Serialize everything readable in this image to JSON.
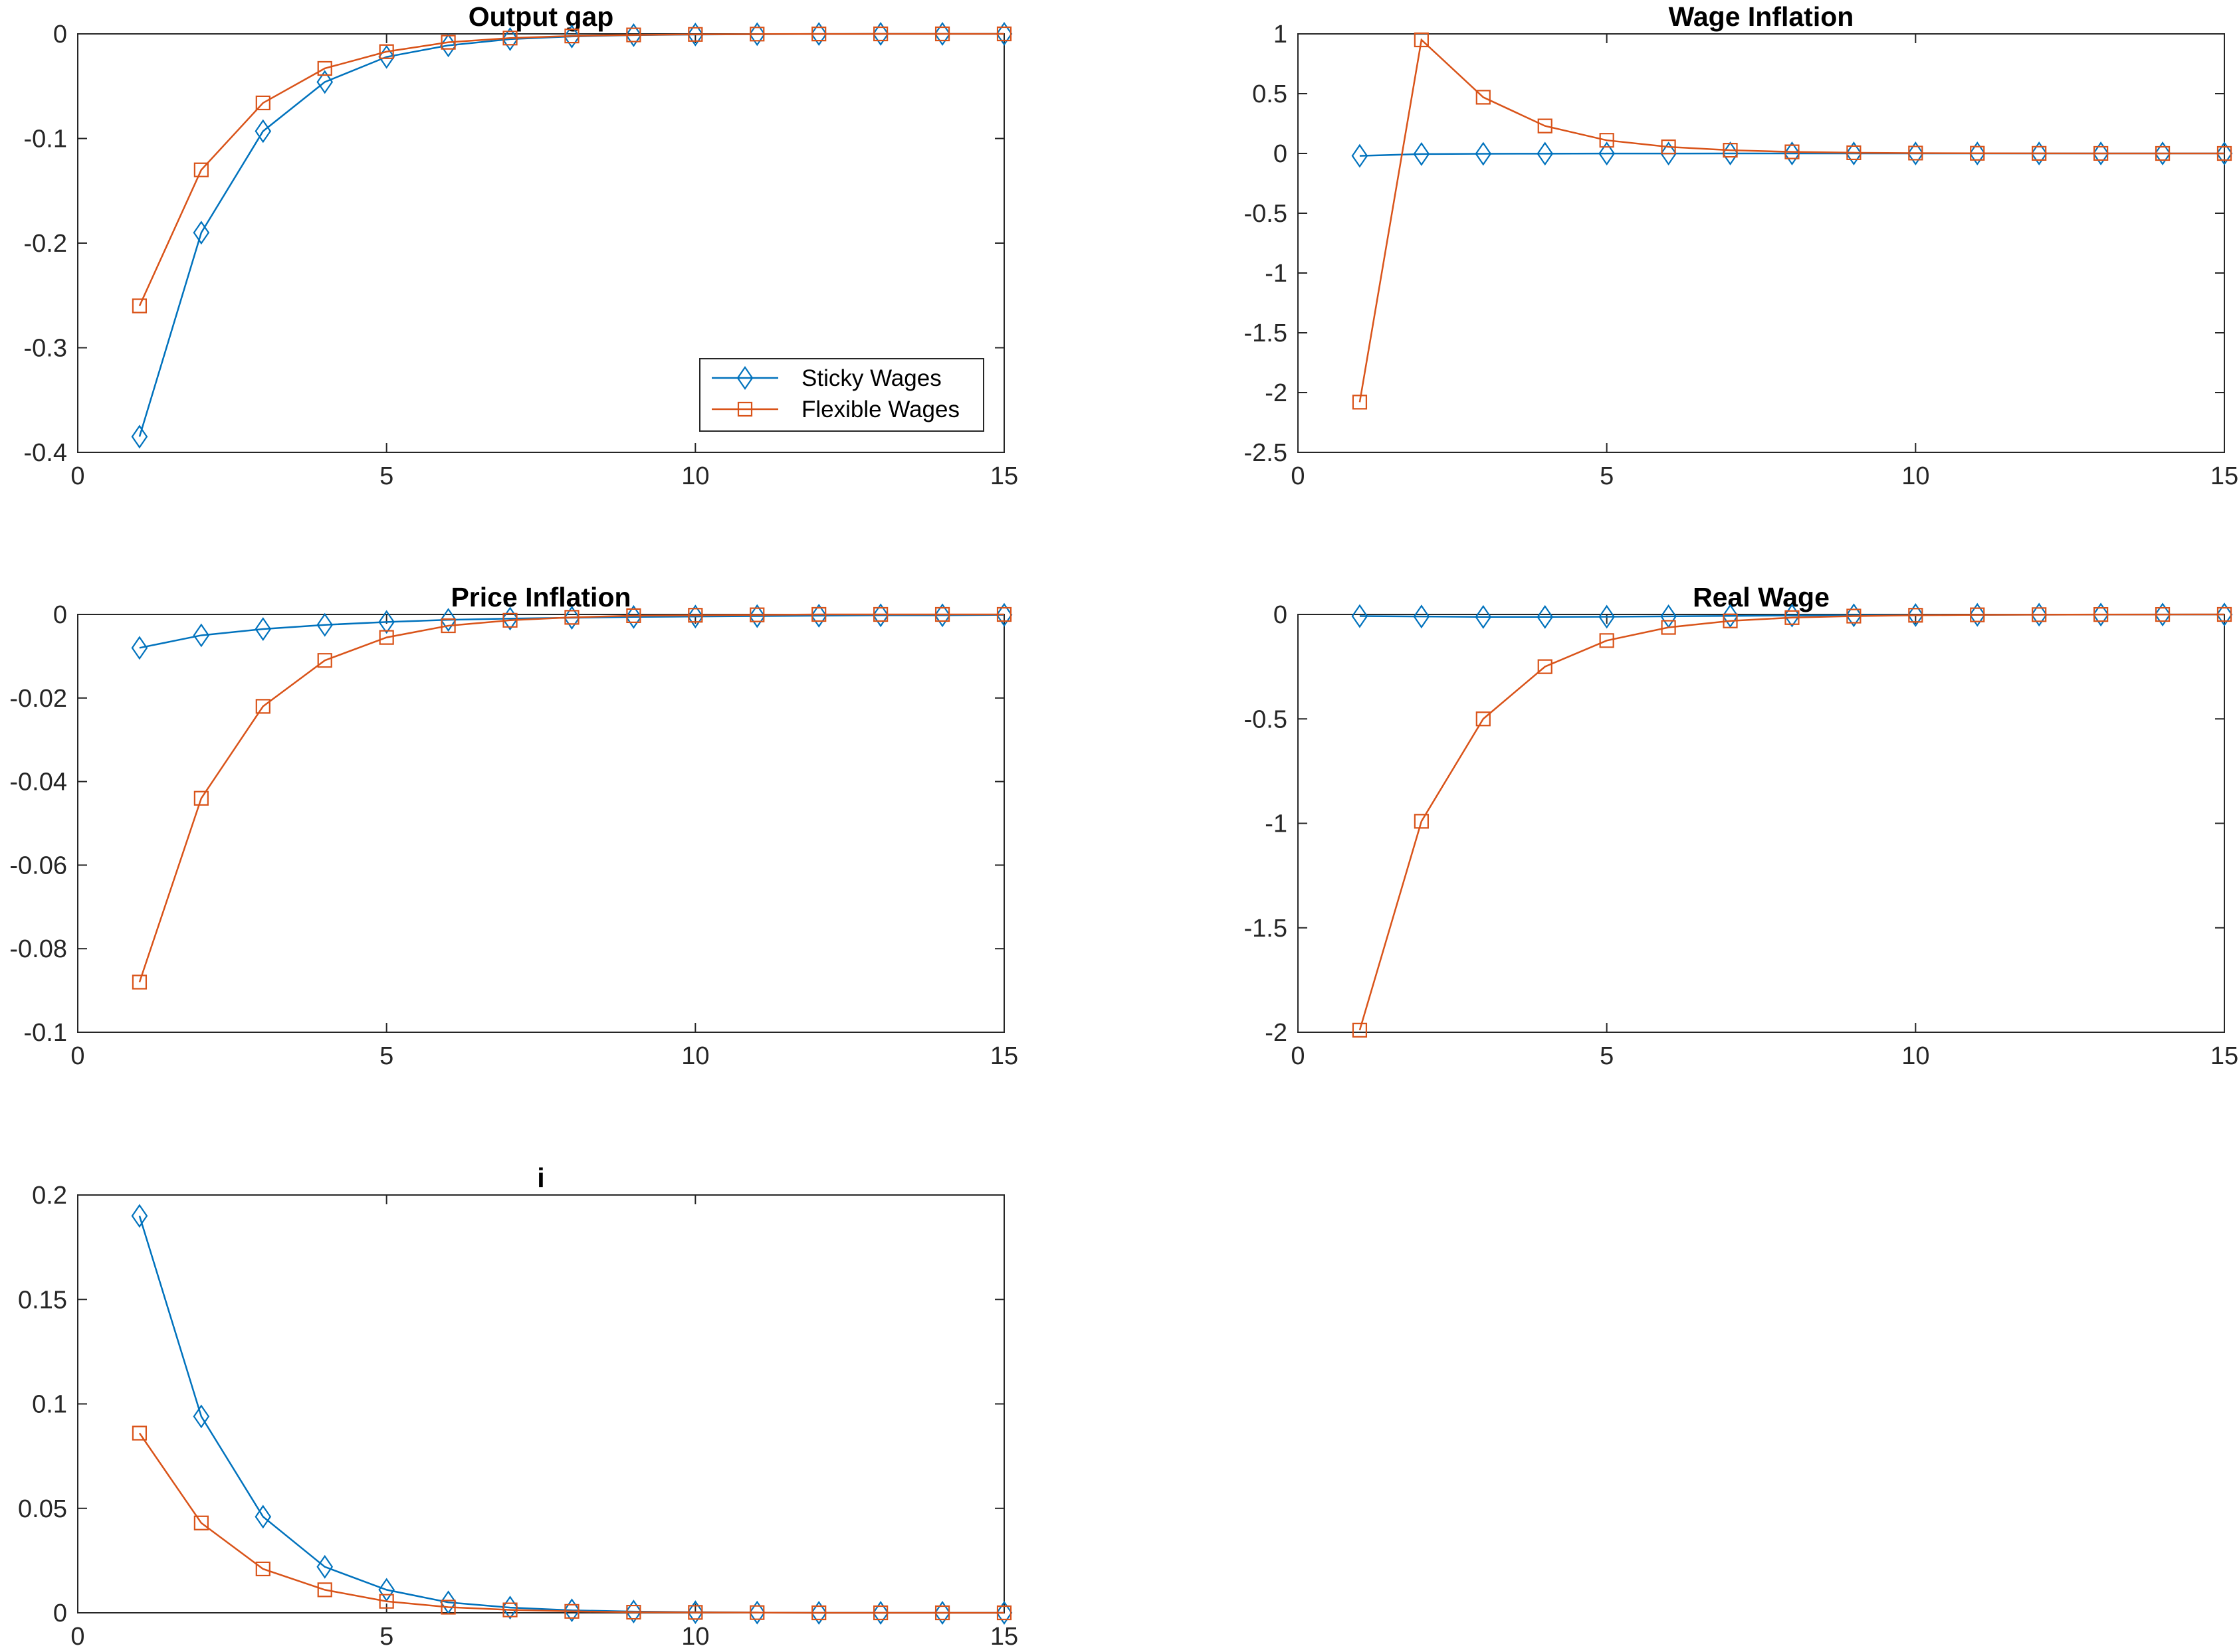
{
  "colors": {
    "sticky": "#0072BD",
    "flexible": "#D95319",
    "axis": "#262626",
    "background": "#ffffff"
  },
  "legend": {
    "entries": [
      {
        "label": "Sticky Wages",
        "marker": "diamond",
        "color": "#0072BD"
      },
      {
        "label": "Flexible Wages",
        "marker": "square",
        "color": "#D95319"
      }
    ],
    "placement": "bottom-right of Output gap panel"
  },
  "chart_data": [
    {
      "type": "line",
      "title": "Output gap",
      "xlabel": "",
      "ylabel": "",
      "xlim": [
        0,
        15
      ],
      "ylim": [
        -0.4,
        0
      ],
      "xticks": [
        0,
        5,
        10,
        15
      ],
      "yticks": [
        0,
        -0.1,
        -0.2,
        -0.3,
        -0.4
      ],
      "ytick_labels": [
        "0",
        "-0.1",
        "-0.2",
        "-0.3",
        "-0.4"
      ],
      "grid": false,
      "has_legend": true,
      "x": [
        1,
        2,
        3,
        4,
        5,
        6,
        7,
        8,
        9,
        10,
        11,
        12,
        13,
        14,
        15
      ],
      "series": [
        {
          "name": "Sticky Wages",
          "marker": "diamond",
          "values": [
            -0.385,
            -0.19,
            -0.093,
            -0.046,
            -0.022,
            -0.011,
            -0.005,
            -0.0025,
            -0.0012,
            -0.0006,
            -0.0003,
            -0.0001,
            0,
            0,
            0
          ]
        },
        {
          "name": "Flexible Wages",
          "marker": "square",
          "values": [
            -0.26,
            -0.13,
            -0.066,
            -0.033,
            -0.017,
            -0.008,
            -0.004,
            -0.002,
            -0.001,
            -0.0005,
            -0.0002,
            -0.0001,
            0,
            0,
            0
          ]
        }
      ]
    },
    {
      "type": "line",
      "title": "Wage Inflation",
      "xlabel": "",
      "ylabel": "",
      "xlim": [
        0,
        15
      ],
      "ylim": [
        -2.5,
        1
      ],
      "xticks": [
        0,
        5,
        10,
        15
      ],
      "yticks": [
        1,
        0.5,
        0,
        -0.5,
        -1,
        -1.5,
        -2,
        -2.5
      ],
      "ytick_labels": [
        "1",
        "0.5",
        "0",
        "-0.5",
        "-1",
        "-1.5",
        "-2",
        "-2.5"
      ],
      "grid": false,
      "has_legend": false,
      "x": [
        1,
        2,
        3,
        4,
        5,
        6,
        7,
        8,
        9,
        10,
        11,
        12,
        13,
        14,
        15
      ],
      "series": [
        {
          "name": "Sticky Wages",
          "marker": "diamond",
          "values": [
            -0.02,
            -0.005,
            -0.003,
            -0.002,
            -0.001,
            -0.001,
            0,
            0,
            0,
            0,
            0,
            0,
            0,
            0,
            0
          ]
        },
        {
          "name": "Flexible Wages",
          "marker": "square",
          "values": [
            -2.08,
            0.95,
            0.47,
            0.23,
            0.11,
            0.055,
            0.027,
            0.013,
            0.006,
            0.003,
            0.0015,
            0.0007,
            0.0003,
            0.0001,
            0
          ]
        }
      ]
    },
    {
      "type": "line",
      "title": "Price Inflation",
      "xlabel": "",
      "ylabel": "",
      "xlim": [
        0,
        15
      ],
      "ylim": [
        -0.1,
        0
      ],
      "xticks": [
        0,
        5,
        10,
        15
      ],
      "yticks": [
        0,
        -0.02,
        -0.04,
        -0.06,
        -0.08,
        -0.1
      ],
      "ytick_labels": [
        "0",
        "-0.02",
        "-0.04",
        "-0.06",
        "-0.08",
        "-0.1"
      ],
      "grid": false,
      "has_legend": false,
      "x": [
        1,
        2,
        3,
        4,
        5,
        6,
        7,
        8,
        9,
        10,
        11,
        12,
        13,
        14,
        15
      ],
      "series": [
        {
          "name": "Sticky Wages",
          "marker": "diamond",
          "values": [
            -0.008,
            -0.005,
            -0.0035,
            -0.0025,
            -0.0018,
            -0.0013,
            -0.001,
            -0.0008,
            -0.0006,
            -0.0005,
            -0.0004,
            -0.0003,
            -0.0002,
            -0.0002,
            -0.0001
          ]
        },
        {
          "name": "Flexible Wages",
          "marker": "square",
          "values": [
            -0.088,
            -0.044,
            -0.022,
            -0.011,
            -0.0055,
            -0.0027,
            -0.0014,
            -0.0007,
            -0.0003,
            -0.0002,
            -0.0001,
            0,
            0,
            0,
            0
          ]
        }
      ]
    },
    {
      "type": "line",
      "title": "Real Wage",
      "xlabel": "",
      "ylabel": "",
      "xlim": [
        0,
        15
      ],
      "ylim": [
        -2,
        0
      ],
      "xticks": [
        0,
        5,
        10,
        15
      ],
      "yticks": [
        0,
        -0.5,
        -1,
        -1.5,
        -2
      ],
      "ytick_labels": [
        "0",
        "-0.5",
        "-1",
        "-1.5",
        "-2"
      ],
      "grid": false,
      "has_legend": false,
      "x": [
        1,
        2,
        3,
        4,
        5,
        6,
        7,
        8,
        9,
        10,
        11,
        12,
        13,
        14,
        15
      ],
      "series": [
        {
          "name": "Sticky Wages",
          "marker": "diamond",
          "values": [
            -0.008,
            -0.01,
            -0.012,
            -0.012,
            -0.011,
            -0.009,
            -0.007,
            -0.005,
            -0.004,
            -0.003,
            -0.002,
            -0.001,
            -0.0008,
            -0.0005,
            -0.0003
          ]
        },
        {
          "name": "Flexible Wages",
          "marker": "square",
          "values": [
            -1.99,
            -0.99,
            -0.5,
            -0.25,
            -0.125,
            -0.062,
            -0.031,
            -0.015,
            -0.008,
            -0.004,
            -0.002,
            -0.001,
            -0.0005,
            -0.0002,
            -0.0001
          ]
        }
      ]
    },
    {
      "type": "line",
      "title": "i",
      "xlabel": "",
      "ylabel": "",
      "xlim": [
        0,
        15
      ],
      "ylim": [
        0,
        0.2
      ],
      "xticks": [
        0,
        5,
        10,
        15
      ],
      "yticks": [
        0.2,
        0.15,
        0.1,
        0.05,
        0
      ],
      "ytick_labels": [
        "0.2",
        "0.15",
        "0.1",
        "0.05",
        "0"
      ],
      "grid": false,
      "has_legend": false,
      "x": [
        1,
        2,
        3,
        4,
        5,
        6,
        7,
        8,
        9,
        10,
        11,
        12,
        13,
        14,
        15
      ],
      "series": [
        {
          "name": "Sticky Wages",
          "marker": "diamond",
          "values": [
            0.19,
            0.094,
            0.046,
            0.022,
            0.011,
            0.005,
            0.0025,
            0.0012,
            0.0006,
            0.0003,
            0.0001,
            0,
            0,
            0,
            0
          ]
        },
        {
          "name": "Flexible Wages",
          "marker": "square",
          "values": [
            0.086,
            0.043,
            0.021,
            0.011,
            0.0055,
            0.0027,
            0.0014,
            0.0007,
            0.0003,
            0.0002,
            0.0001,
            0,
            0,
            0,
            0
          ]
        }
      ]
    }
  ]
}
